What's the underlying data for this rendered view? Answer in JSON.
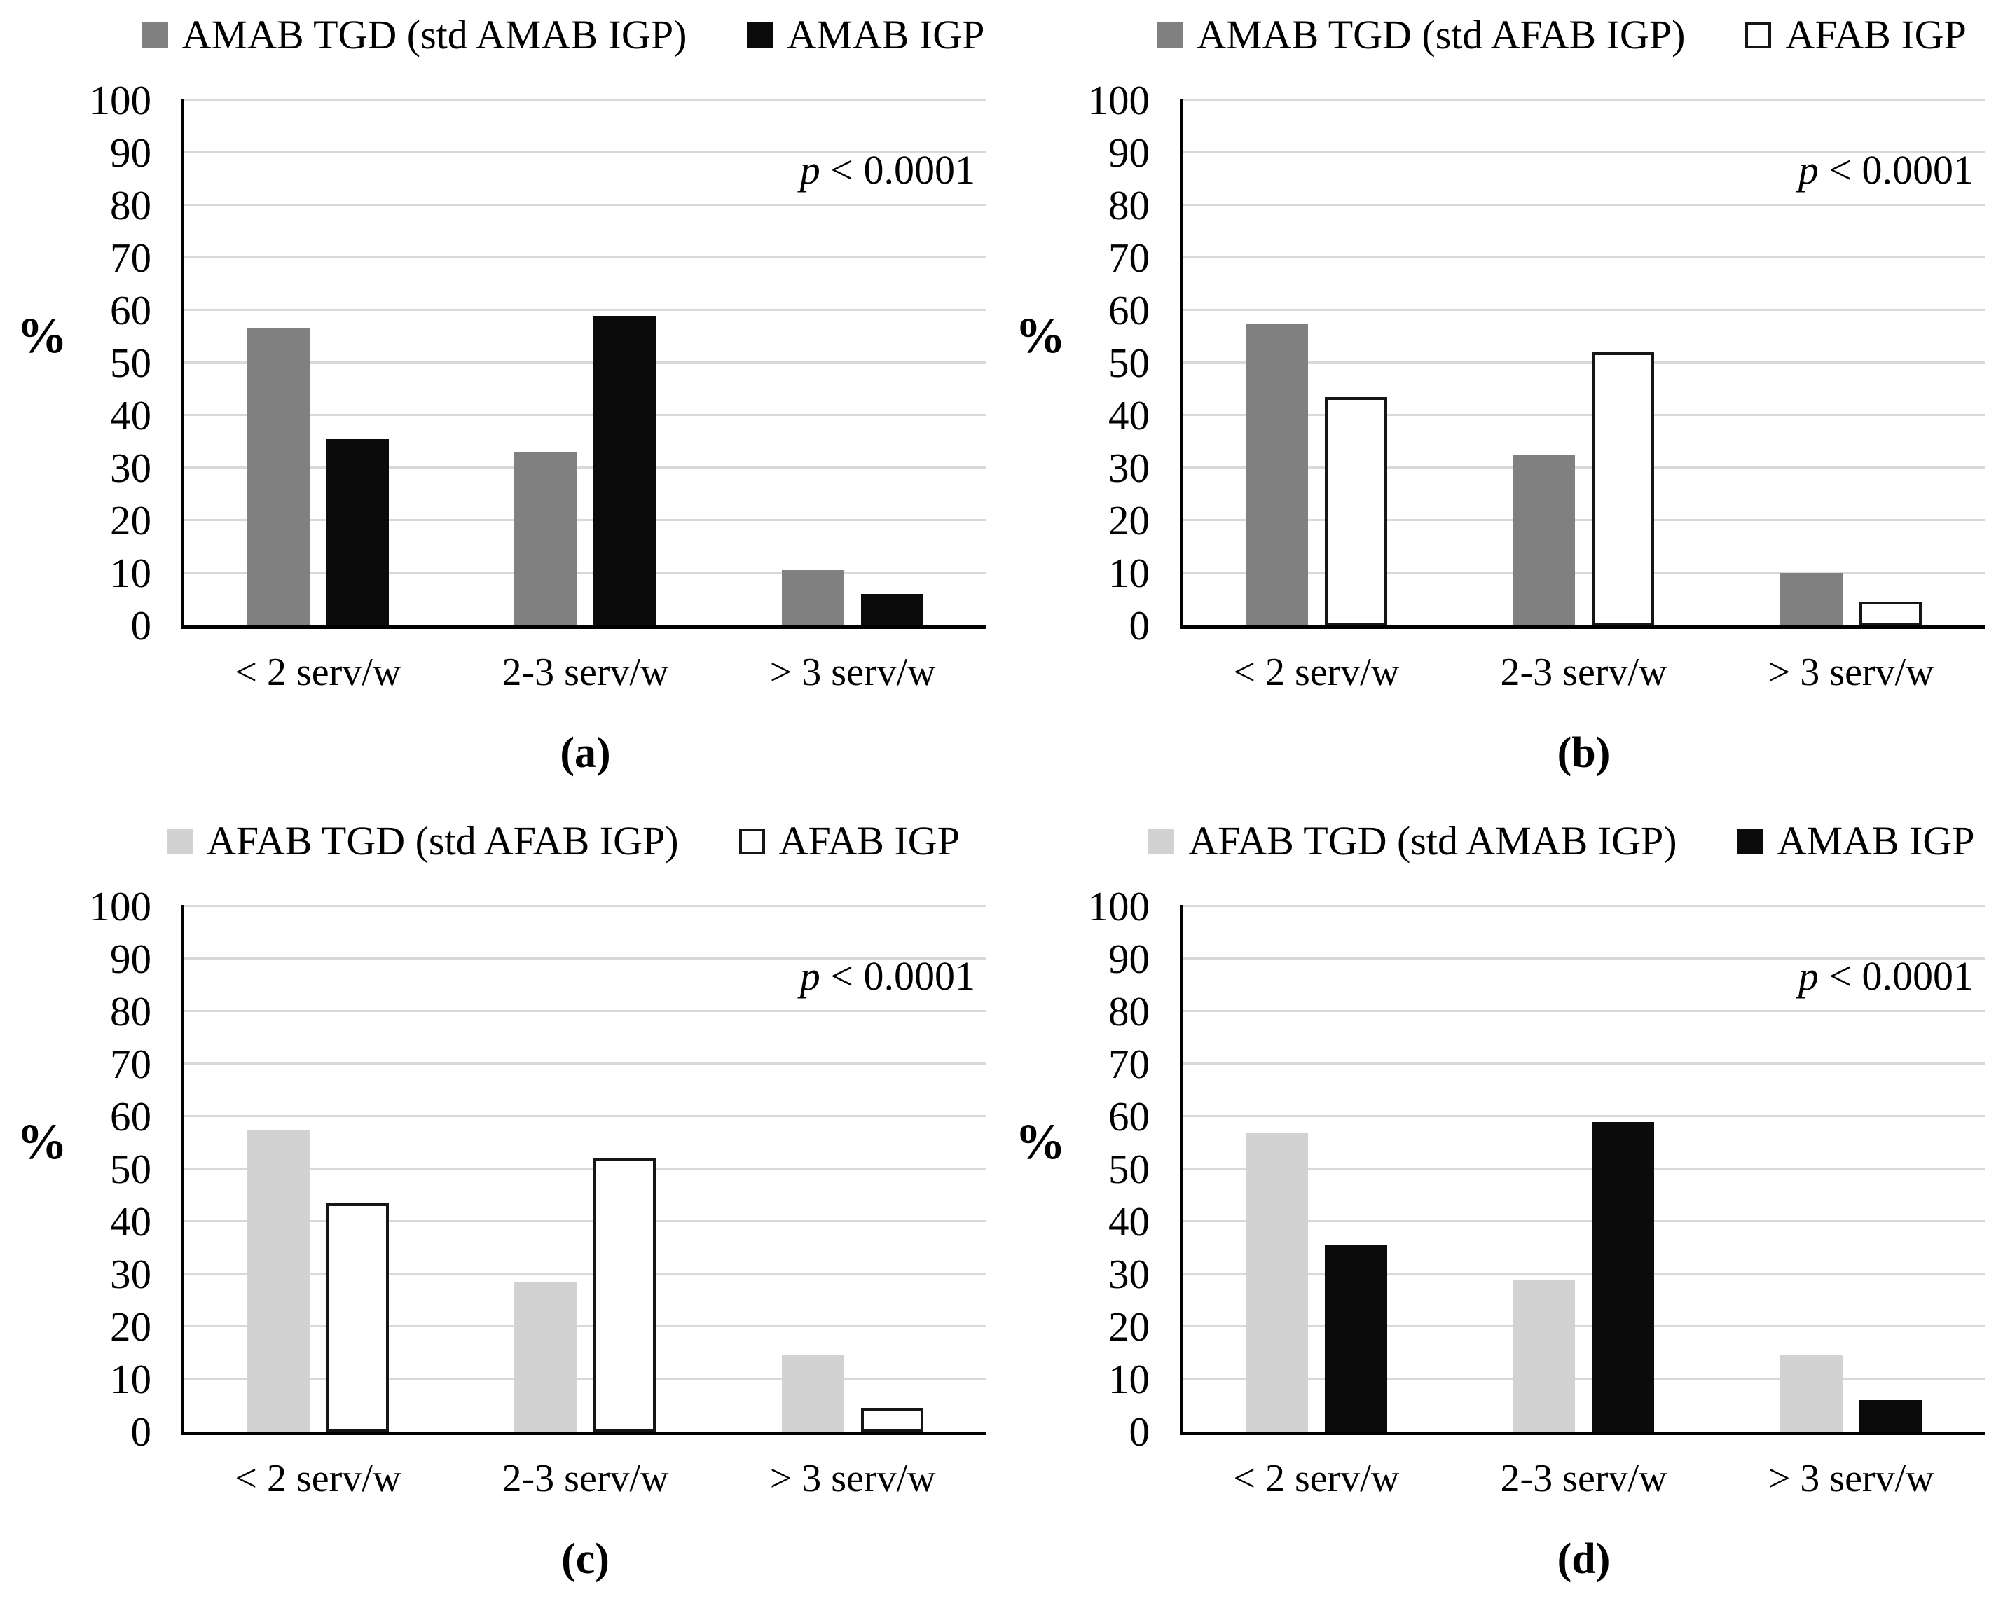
{
  "figure": {
    "background": "#ffffff",
    "percent_label": "%",
    "p_annotation": "p < 0.0001",
    "p_annotation_var": "p",
    "p_annotation_rest": " < 0.0001",
    "yticks": [
      100,
      90,
      80,
      70,
      60,
      50,
      40,
      30,
      20,
      10,
      0
    ],
    "colors": {
      "dark_gray": "#808080",
      "light_gray": "#d2d2d2",
      "black": "#0b0b0b",
      "white_fill": "#ffffff",
      "bar_outline": "#161616",
      "gridline": "#d9d9d9",
      "axis": "#000000",
      "text": "#000000"
    }
  },
  "chart_data": [
    {
      "panel": "(a)",
      "type": "bar",
      "ylabel": "%",
      "ylim": [
        0,
        100
      ],
      "ytick_step": 10,
      "grid": true,
      "legend_position": "top",
      "annotation": "p < 0.0001",
      "categories": [
        "< 2 serv/w",
        "2-3 serv/w",
        "> 3 serv/w"
      ],
      "series": [
        {
          "name": "AMAB TGD (std AMAB IGP)",
          "color": "#808080",
          "outlined": false,
          "values": [
            56.5,
            33,
            10.5
          ]
        },
        {
          "name": "AMAB IGP",
          "color": "#0b0b0b",
          "outlined": false,
          "values": [
            35.5,
            59,
            6
          ]
        }
      ]
    },
    {
      "panel": "(b)",
      "type": "bar",
      "ylabel": "%",
      "ylim": [
        0,
        100
      ],
      "ytick_step": 10,
      "grid": true,
      "legend_position": "top",
      "annotation": "p < 0.0001",
      "categories": [
        "< 2 serv/w",
        "2-3 serv/w",
        "> 3 serv/w"
      ],
      "series": [
        {
          "name": "AMAB TGD (std AFAB IGP)",
          "color": "#808080",
          "outlined": false,
          "values": [
            57.5,
            32.5,
            10
          ]
        },
        {
          "name": "AFAB IGP",
          "color": "#ffffff",
          "outlined": true,
          "values": [
            43.5,
            52,
            4.5
          ]
        }
      ]
    },
    {
      "panel": "(c)",
      "type": "bar",
      "ylabel": "%",
      "ylim": [
        0,
        100
      ],
      "ytick_step": 10,
      "grid": true,
      "legend_position": "top",
      "annotation": "p < 0.0001",
      "categories": [
        "< 2 serv/w",
        "2-3 serv/w",
        "> 3 serv/w"
      ],
      "series": [
        {
          "name": "AFAB TGD (std AFAB IGP)",
          "color": "#d2d2d2",
          "outlined": false,
          "values": [
            57.5,
            28.5,
            14.5
          ]
        },
        {
          "name": "AFAB IGP",
          "color": "#ffffff",
          "outlined": true,
          "values": [
            43.5,
            52,
            4.5
          ]
        }
      ]
    },
    {
      "panel": "(d)",
      "type": "bar",
      "ylabel": "%",
      "ylim": [
        0,
        100
      ],
      "ytick_step": 10,
      "grid": true,
      "legend_position": "top",
      "annotation": "p < 0.0001",
      "categories": [
        "< 2 serv/w",
        "2-3 serv/w",
        "> 3 serv/w"
      ],
      "series": [
        {
          "name": "AFAB TGD (std AMAB IGP)",
          "color": "#d2d2d2",
          "outlined": false,
          "values": [
            57,
            29,
            14.5
          ]
        },
        {
          "name": "AMAB IGP",
          "color": "#0b0b0b",
          "outlined": false,
          "values": [
            35.5,
            59,
            6
          ]
        }
      ]
    }
  ]
}
